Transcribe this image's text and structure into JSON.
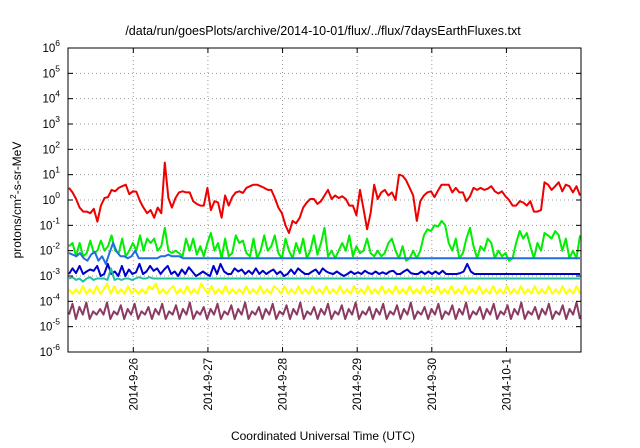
{
  "chart_data": {
    "type": "line",
    "title": "/data/run/goesPlots/archive/2014-10-01/flux/../flux/7daysEarthFluxes.txt",
    "xlabel": "Coordinated Universal Time (UTC)",
    "ylabel": "protons/cm2-s-sr-MeV",
    "ylabel_parts": {
      "base": "protons/cm",
      "sup": "2",
      "rest": "-s-sr-MeV"
    },
    "y_scale": "log",
    "ylim": [
      1e-06,
      1000000.0
    ],
    "y_ticks": [
      {
        "label": "10",
        "exp": "-6",
        "value": 1e-06
      },
      {
        "label": "10",
        "exp": "-5",
        "value": 1e-05
      },
      {
        "label": "10",
        "exp": "-4",
        "value": 0.0001
      },
      {
        "label": "10",
        "exp": "-3",
        "value": 0.001
      },
      {
        "label": "10",
        "exp": "-2",
        "value": 0.01
      },
      {
        "label": "10",
        "exp": "-1",
        "value": 0.1
      },
      {
        "label": "10",
        "exp": "0",
        "value": 1
      },
      {
        "label": "10",
        "exp": "1",
        "value": 10
      },
      {
        "label": "10",
        "exp": "2",
        "value": 100
      },
      {
        "label": "10",
        "exp": "3",
        "value": 1000
      },
      {
        "label": "10",
        "exp": "4",
        "value": 10000
      },
      {
        "label": "10",
        "exp": "5",
        "value": 100000
      },
      {
        "label": "10",
        "exp": "6",
        "value": 1000000
      }
    ],
    "x_type": "date",
    "xlim": [
      "2014-09-25T03:00",
      "2014-10-01T23:59"
    ],
    "x_ticks": [
      "2014-9-26",
      "2014-9-27",
      "2014-9-28",
      "2014-9-29",
      "2014-9-30",
      "2014-10-1"
    ],
    "grid": true,
    "legend": "none",
    "series_colors": [
      "#ee0000",
      "#00ee00",
      "#1f6fe0",
      "#0000cc",
      "#20c0a0",
      "#ffff00",
      "#8b3a62"
    ],
    "series": [
      {
        "color": "#ee0000",
        "values": [
          3,
          2,
          1.1,
          0.5,
          0.35,
          0.35,
          0.3,
          0.45,
          0.14,
          0.6,
          1.2,
          1.3,
          2.5,
          2.2,
          3,
          3.5,
          4,
          1.7,
          2.2,
          2.1,
          0.9,
          0.5,
          0.3,
          0.4,
          0.2,
          0.5,
          0.3,
          30,
          1.2,
          0.5,
          1.2,
          2,
          2.2,
          2,
          2,
          0.9,
          0.7,
          0.6,
          0.6,
          3,
          0.4,
          0.9,
          0.8,
          0.2,
          1.5,
          0.6,
          1.3,
          2,
          2.2,
          1.9,
          3,
          3.5,
          4,
          4,
          3.5,
          3,
          2.5,
          2.5,
          1.2,
          0.5,
          0.3,
          0.1,
          0.05,
          0.15,
          0.12,
          0.2,
          0.5,
          0.8,
          1.1,
          1.1,
          0.7,
          0.9,
          1.5,
          2.5,
          1.1,
          1.5,
          1.2,
          1.4,
          1.1,
          0.6,
          0.6,
          0.25,
          2.5,
          0.45,
          0.07,
          0.3,
          4,
          1.1,
          2,
          2.5,
          1.5,
          2,
          1,
          10,
          9,
          6,
          3,
          1.5,
          0.15,
          0.9,
          1.5,
          2,
          2.2,
          1.3,
          2.4,
          4,
          4,
          4,
          2,
          3,
          2,
          2,
          0.9,
          1.4,
          3,
          2.5,
          3,
          2.5,
          2.8,
          3.5,
          2.2,
          1.8,
          2.2,
          1.4,
          1,
          0.6,
          0.6,
          0.9,
          0.8,
          0.6,
          0.9,
          0.35,
          0.35,
          0.4,
          5,
          4,
          2.5,
          3.5,
          5,
          2.2,
          4,
          3.5,
          2,
          3.5,
          1.5
        ]
      },
      {
        "color": "#00ee00",
        "values": [
          0.015,
          0.02,
          0.006,
          0.02,
          0.006,
          0.008,
          0.025,
          0.008,
          0.01,
          0.025,
          0.01,
          0.015,
          0.04,
          0.01,
          0.008,
          0.03,
          0.006,
          0.01,
          0.02,
          0.01,
          0.04,
          0.01,
          0.03,
          0.02,
          0.03,
          0.01,
          0.015,
          0.08,
          0.01,
          0.008,
          0.01,
          0.008,
          0.006,
          0.03,
          0.01,
          0.03,
          0.007,
          0.015,
          0.006,
          0.02,
          0.05,
          0.01,
          0.02,
          0.005,
          0.03,
          0.006,
          0.008,
          0.04,
          0.02,
          0.025,
          0.008,
          0.006,
          0.03,
          0.005,
          0.01,
          0.04,
          0.01,
          0.015,
          0.04,
          0.008,
          0.005,
          0.03,
          0.01,
          0.005,
          0.02,
          0.008,
          0.03,
          0.005,
          0.01,
          0.04,
          0.007,
          0.02,
          0.08,
          0.006,
          0.01,
          0.005,
          0.01,
          0.02,
          0.01,
          0.04,
          0.006,
          0.015,
          0.008,
          0.01,
          0.03,
          0.008,
          0.006,
          0.01,
          0.006,
          0.008,
          0.02,
          0.03,
          0.01,
          0.005,
          0.015,
          0.004,
          0.005,
          0.01,
          0.005,
          0.01,
          0.04,
          0.07,
          0.06,
          0.1,
          0.09,
          0.15,
          0.1,
          0.02,
          0.01,
          0.03,
          0.005,
          0.008,
          0.03,
          0.08,
          0.015,
          0.005,
          0.015,
          0.01,
          0.03,
          0.02,
          0.005,
          0.01,
          0.006,
          0.008,
          0.004,
          0.005,
          0.02,
          0.06,
          0.03,
          0.05,
          0.015,
          0.005,
          0.02,
          0.01,
          0.05,
          0.04,
          0.03,
          0.06,
          0.04,
          0.01,
          0.03,
          0.005,
          0.01,
          0.005,
          0.04
        ]
      },
      {
        "color": "#1f6fe0",
        "values": [
          0.008,
          0.007,
          0.006,
          0.008,
          0.005,
          0.004,
          0.007,
          0.009,
          0.004,
          0.006,
          0.003,
          0.008,
          0.02,
          0.009,
          0.006,
          0.006,
          0.005,
          0.006,
          0.01,
          0.005,
          0.005,
          0.005,
          0.005,
          0.005,
          0.005,
          0.006,
          0.006,
          0.007,
          0.006,
          0.006,
          0.006,
          0.005,
          0.005,
          0.005,
          0.005,
          0.005,
          0.005,
          0.005,
          0.005,
          0.005,
          0.005,
          0.005,
          0.005,
          0.005,
          0.005,
          0.005,
          0.005,
          0.005,
          0.005,
          0.005,
          0.005,
          0.005,
          0.005,
          0.005,
          0.005,
          0.005,
          0.005,
          0.005,
          0.005,
          0.005,
          0.005,
          0.005,
          0.005,
          0.005,
          0.005,
          0.005,
          0.005,
          0.005,
          0.005,
          0.005,
          0.005,
          0.005,
          0.005,
          0.005,
          0.005,
          0.005,
          0.005,
          0.005,
          0.005,
          0.005,
          0.005,
          0.005,
          0.005,
          0.005,
          0.005,
          0.005,
          0.005,
          0.005,
          0.005,
          0.005,
          0.005,
          0.005,
          0.005,
          0.005,
          0.005,
          0.005,
          0.005,
          0.005,
          0.005,
          0.005,
          0.005,
          0.005,
          0.005,
          0.005,
          0.005,
          0.005,
          0.005,
          0.005,
          0.005,
          0.005,
          0.005,
          0.005,
          0.005,
          0.005,
          0.005,
          0.005,
          0.005,
          0.005,
          0.005,
          0.005,
          0.005,
          0.005,
          0.005,
          0.005,
          0.005,
          0.005,
          0.005,
          0.005,
          0.005,
          0.005,
          0.005,
          0.005,
          0.005,
          0.005,
          0.005,
          0.005,
          0.005,
          0.005,
          0.005,
          0.005
        ]
      },
      {
        "color": "#0000cc",
        "values": [
          0.0012,
          0.002,
          0.0013,
          0.0025,
          0.0012,
          0.0015,
          0.0018,
          0.0016,
          0.0025,
          0.001,
          0.0012,
          0.003,
          0.0012,
          0.0015,
          0.001,
          0.0025,
          0.001,
          0.0018,
          0.0012,
          0.0014,
          0.003,
          0.0012,
          0.0015,
          0.0025,
          0.0016,
          0.002,
          0.0012,
          0.0018,
          0.0025,
          0.0012,
          0.0015,
          0.001,
          0.0018,
          0.0012,
          0.0022,
          0.0015,
          0.001,
          0.0012,
          0.0015,
          0.0012,
          0.001,
          0.0025,
          0.0012,
          0.003,
          0.0015,
          0.0012,
          0.0012,
          0.002,
          0.0015,
          0.0018,
          0.0012,
          0.0016,
          0.0012,
          0.002,
          0.0012,
          0.0016,
          0.0012,
          0.0015,
          0.0018,
          0.0012,
          0.0015,
          0.001,
          0.0012,
          0.0018,
          0.0012,
          0.002,
          0.0015,
          0.0012,
          0.0012,
          0.0015,
          0.0018,
          0.0012,
          0.002,
          0.0015,
          0.0013,
          0.0012,
          0.0015,
          0.0012,
          0.001,
          0.0012,
          0.0015,
          0.0012,
          0.0014,
          0.0012,
          0.0016,
          0.0013,
          0.0012,
          0.0015,
          0.0012,
          0.0014,
          0.0012,
          0.0015,
          0.0016,
          0.0012,
          0.0012,
          0.0015,
          0.0018,
          0.0013,
          0.0012,
          0.0012,
          0.0015,
          0.0012,
          0.0015,
          0.0012,
          0.0015,
          0.0012,
          0.0016,
          0.0012,
          0.0012,
          0.0012,
          0.0012,
          0.0013,
          0.0015,
          0.003,
          0.0015,
          0.0012,
          0.0012,
          0.0012,
          0.0012,
          0.0012,
          0.0012,
          0.0012,
          0.0012,
          0.0012,
          0.0012,
          0.0012,
          0.0012,
          0.0012,
          0.0012,
          0.0012,
          0.0012,
          0.0012,
          0.0012,
          0.0012,
          0.0012,
          0.0012,
          0.0012,
          0.0012,
          0.0012,
          0.0012,
          0.0012,
          0.0012,
          0.0012,
          0.0012,
          0.0012,
          0.0012
        ]
      },
      {
        "color": "#20c0a0",
        "values": [
          0.0008,
          0.0009,
          0.0007,
          0.0008,
          0.0006,
          0.0008,
          0.0009,
          0.0007,
          0.0008,
          0.0008,
          0.0008,
          0.0007,
          0.002,
          0.0007,
          0.0008,
          0.0007,
          0.0008,
          0.0008,
          0.0007,
          0.0008,
          0.0009,
          0.0008,
          0.0008,
          0.0009,
          0.0008,
          0.0008,
          0.0008,
          0.0008,
          0.0008,
          0.0008,
          0.0008,
          0.0008,
          0.0008,
          0.0008,
          0.0008,
          0.0008,
          0.0008,
          0.0008,
          0.0008,
          0.0008,
          0.0008,
          0.0008,
          0.0008,
          0.0008,
          0.0008,
          0.0008,
          0.0008,
          0.0008,
          0.0008,
          0.0008,
          0.0008,
          0.0008,
          0.0008,
          0.0008,
          0.0008,
          0.0008,
          0.0008,
          0.0008,
          0.0008,
          0.0008,
          0.0008,
          0.0008,
          0.0008,
          0.0008,
          0.0008,
          0.0008,
          0.0008,
          0.0008,
          0.0008,
          0.0008,
          0.0008,
          0.0008,
          0.0008,
          0.0008,
          0.0008,
          0.0008,
          0.0008,
          0.0008,
          0.0008,
          0.0008,
          0.0008,
          0.0008,
          0.0008,
          0.0008,
          0.0008,
          0.0008,
          0.0008,
          0.0008,
          0.0008,
          0.0008,
          0.0008,
          0.0008,
          0.0008,
          0.0008,
          0.0008,
          0.0008,
          0.0008,
          0.0008,
          0.0008,
          0.0008,
          0.0008,
          0.0008,
          0.0008,
          0.0008,
          0.0008,
          0.0008,
          0.0008,
          0.0008,
          0.0008,
          0.0008,
          0.0008,
          0.0008,
          0.0008,
          0.0008,
          0.0008,
          0.0008,
          0.0008,
          0.0008,
          0.0008,
          0.0008,
          0.0008,
          0.0008,
          0.0008,
          0.0008,
          0.0008,
          0.0008,
          0.0008,
          0.0008,
          0.0008,
          0.0008,
          0.0008,
          0.0008,
          0.0008,
          0.0008,
          0.0008,
          0.0008,
          0.0008,
          0.0008,
          0.0008,
          0.0008,
          0.0008,
          0.0008,
          0.0008,
          0.0008,
          0.0008,
          0.0008,
          0.0008
        ]
      },
      {
        "color": "#ffff00",
        "values": [
          0.0003,
          0.0002,
          0.0003,
          0.0002,
          0.0004,
          0.0002,
          0.0003,
          0.0002,
          0.0004,
          0.0002,
          0.0003,
          0.0005,
          0.0002,
          0.0004,
          0.0002,
          0.0003,
          0.0002,
          0.0004,
          0.0002,
          0.0003,
          0.0002,
          0.0003,
          0.0002,
          0.0004,
          0.0003,
          0.0005,
          0.0002,
          0.0003,
          0.0002,
          0.0003,
          0.0004,
          0.0002,
          0.0003,
          0.0002,
          0.0004,
          0.0002,
          0.0003,
          0.0002,
          0.0005,
          0.0003,
          0.0002,
          0.0004,
          0.0002,
          0.0003,
          0.0002,
          0.0004,
          0.0002,
          0.0003,
          0.0002,
          0.0003,
          0.0002,
          0.0004,
          0.0002,
          0.0003,
          0.0002,
          0.0004,
          0.0002,
          0.0003,
          0.0002,
          0.0004,
          0.0003,
          0.0002,
          0.0004,
          0.0002,
          0.0003,
          0.0002,
          0.0004,
          0.0002,
          0.0003,
          0.0002,
          0.0004,
          0.0002,
          0.0003,
          0.0002,
          0.0004,
          0.0002,
          0.0003,
          0.0002,
          0.0004,
          0.0002,
          0.0003,
          0.0002,
          0.0004,
          0.0002,
          0.0003,
          0.0002,
          0.0004,
          0.0002,
          0.0003,
          0.0002,
          0.0004,
          0.0002,
          0.0003,
          0.0002,
          0.0004,
          0.0002,
          0.0003,
          0.0002,
          0.0004,
          0.0002,
          0.0003,
          0.0002,
          0.0004,
          0.0002,
          0.0003,
          0.0002,
          0.0004,
          0.0002,
          0.0003,
          0.0002,
          0.0004,
          0.0002,
          0.0003,
          0.0002,
          0.0004,
          0.0002,
          0.0003,
          0.0002,
          0.0004,
          0.0002,
          0.0003,
          0.0002,
          0.0004,
          0.0002,
          0.0003,
          0.0002,
          0.0004,
          0.0002,
          0.0003,
          0.0002,
          0.0004,
          0.0002,
          0.0003,
          0.0002,
          0.0004,
          0.0002,
          0.0003,
          0.0002,
          0.0004,
          0.0002,
          0.0003,
          0.0002,
          0.0004,
          0.0002,
          0.0003,
          0.0002,
          0.0004,
          0.0002
        ]
      },
      {
        "color": "#8b3a62",
        "values": [
          3e-05,
          8e-05,
          2e-05,
          6e-05,
          3e-05,
          9e-05,
          2e-05,
          4e-05,
          3e-05,
          5e-05,
          3e-05,
          9e-05,
          2e-05,
          4e-05,
          3e-05,
          7e-05,
          2e-05,
          5e-05,
          3e-05,
          8e-05,
          2e-05,
          4e-05,
          3e-05,
          6e-05,
          2e-05,
          5e-05,
          3e-05,
          8e-05,
          2e-05,
          4e-05,
          3e-05,
          7e-05,
          2e-05,
          5e-05,
          3e-05,
          9e-05,
          2e-05,
          4e-05,
          3e-05,
          6e-05,
          2e-05,
          5e-05,
          3e-05,
          8e-05,
          2e-05,
          4e-05,
          3e-05,
          7e-05,
          2e-05,
          5e-05,
          3e-05,
          9e-05,
          2e-05,
          4e-05,
          3e-05,
          6e-05,
          2e-05,
          5e-05,
          3e-05,
          8e-05,
          2e-05,
          4e-05,
          3e-05,
          7e-05,
          2e-05,
          5e-05,
          3e-05,
          9e-05,
          2e-05,
          4e-05,
          3e-05,
          6e-05,
          2e-05,
          5e-05,
          3e-05,
          8e-05,
          2e-05,
          4e-05,
          3e-05,
          7e-05,
          2e-05,
          5e-05,
          3e-05,
          9e-05,
          2e-05,
          4e-05,
          3e-05,
          6e-05,
          2e-05,
          5e-05,
          3e-05,
          8e-05,
          2e-05,
          4e-05,
          3e-05,
          7e-05,
          2e-05,
          5e-05,
          3e-05,
          9e-05,
          2e-05,
          4e-05,
          3e-05,
          6e-05,
          2e-05,
          5e-05,
          3e-05,
          8e-05,
          2e-05,
          4e-05,
          3e-05,
          7e-05,
          2e-05,
          5e-05,
          3e-05,
          9e-05,
          2e-05,
          4e-05,
          3e-05,
          6e-05,
          2e-05,
          5e-05,
          3e-05,
          8e-05,
          2e-05,
          4e-05,
          3e-05,
          7e-05,
          2e-05,
          5e-05,
          3e-05,
          9e-05,
          2e-05,
          4e-05,
          3e-05,
          6e-05,
          2e-05,
          5e-05,
          3e-05,
          8e-05,
          2e-05,
          4e-05,
          3e-05,
          7e-05,
          2e-05,
          5e-05,
          3e-05,
          9e-05,
          2e-05
        ]
      }
    ]
  }
}
